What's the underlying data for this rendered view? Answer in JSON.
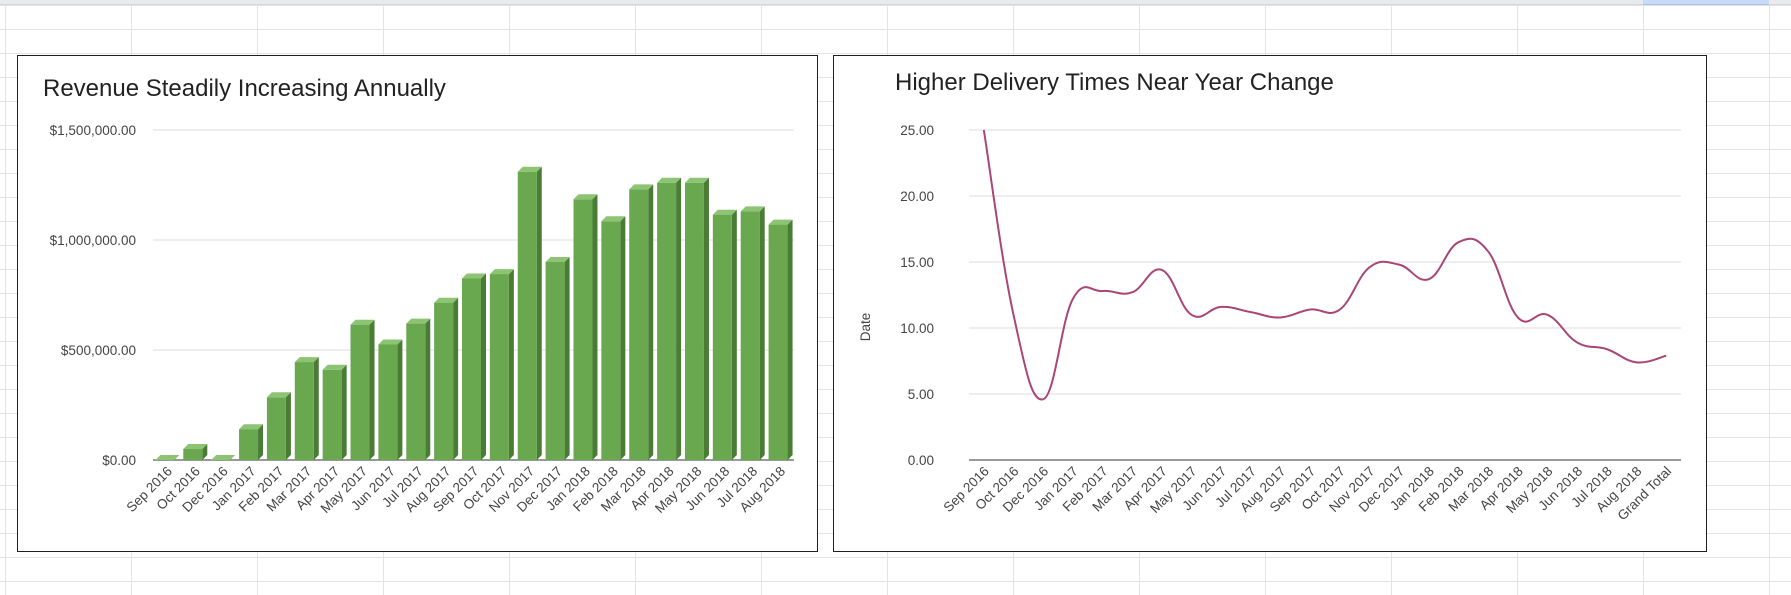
{
  "colors": {
    "bar_front": "#6aa84f",
    "bar_side": "#4a7c36",
    "bar_top": "#8cc474",
    "line": "#a94677",
    "gridline": "#dddddd",
    "baseline": "#333333"
  },
  "chart_data": [
    {
      "type": "bar",
      "title": "Revenue Steadily Increasing Annually",
      "xlabel": "",
      "ylabel": "",
      "ylim": [
        0,
        1500000
      ],
      "yticks": [
        0,
        500000,
        1000000,
        1500000
      ],
      "ytick_labels": [
        "$0.00",
        "$500,000.00",
        "$1,000,000.00",
        "$1,500,000.00"
      ],
      "grid": true,
      "legend": "none",
      "style": "3d",
      "categories": [
        "Sep 2016",
        "Oct 2016",
        "Dec 2016",
        "Jan 2017",
        "Feb 2017",
        "Mar 2017",
        "Apr 2017",
        "May 2017",
        "Jun 2017",
        "Jul 2017",
        "Aug 2017",
        "Sep 2017",
        "Oct 2017",
        "Nov 2017",
        "Dec 2017",
        "Jan 2018",
        "Feb 2018",
        "Mar 2018",
        "Apr 2018",
        "May 2018",
        "Jun 2018",
        "Jul 2018",
        "Aug 2018"
      ],
      "values": [
        0,
        50000,
        0,
        140000,
        285000,
        445000,
        410000,
        615000,
        525000,
        620000,
        715000,
        825000,
        845000,
        1310000,
        900000,
        1185000,
        1085000,
        1230000,
        1260000,
        1260000,
        1115000,
        1130000,
        1070000
      ]
    },
    {
      "type": "line",
      "title": "Higher Delivery Times Near Year Change",
      "xlabel": "",
      "ylabel": "Date",
      "ylim": [
        0,
        25
      ],
      "yticks": [
        0,
        5,
        10,
        15,
        20,
        25
      ],
      "ytick_labels": [
        "0.00",
        "5.00",
        "10.00",
        "15.00",
        "20.00",
        "25.00"
      ],
      "grid": true,
      "legend": "none",
      "smooth": true,
      "categories": [
        "Sep 2016",
        "Oct 2016",
        "Dec 2016",
        "Jan 2017",
        "Feb 2017",
        "Mar 2017",
        "Apr 2017",
        "May 2017",
        "Jun 2017",
        "Jul 2017",
        "Aug 2017",
        "Sep 2017",
        "Oct 2017",
        "Nov 2017",
        "Dec 2017",
        "Jan 2018",
        "Feb 2018",
        "Mar 2018",
        "Apr 2018",
        "May 2018",
        "Jun 2018",
        "Jul 2018",
        "Aug 2018",
        "Grand Total"
      ],
      "values": [
        25.0,
        11.0,
        4.6,
        12.2,
        12.8,
        12.7,
        14.4,
        11.0,
        11.6,
        11.2,
        10.8,
        11.4,
        11.4,
        14.6,
        14.8,
        13.7,
        16.5,
        15.8,
        10.8,
        11.0,
        8.9,
        8.4,
        7.4,
        7.9
      ]
    }
  ]
}
